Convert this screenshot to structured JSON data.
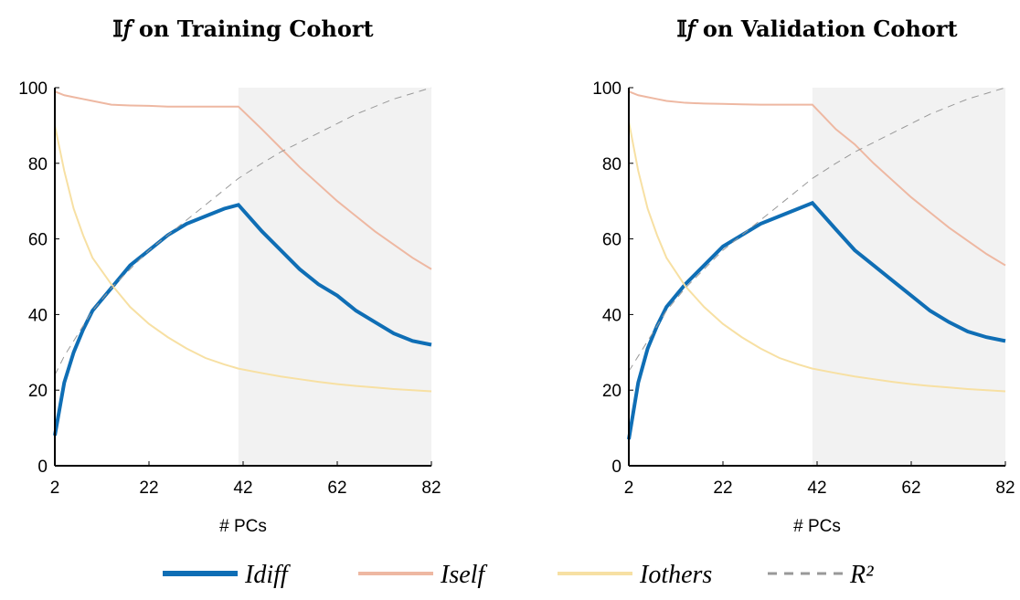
{
  "chart_data": [
    {
      "type": "line",
      "title": "𝕀𝑓 on Training Cohort",
      "x_label": "# PCs",
      "x": [
        2,
        4,
        6,
        8,
        10,
        14,
        18,
        22,
        26,
        30,
        34,
        38,
        41,
        46,
        50,
        54,
        58,
        62,
        66,
        70,
        74,
        78,
        82
      ],
      "xlim": [
        2,
        82
      ],
      "xticks": [
        2,
        22,
        42,
        62,
        82
      ],
      "ylim": [
        0,
        100
      ],
      "yticks": [
        0,
        20,
        40,
        60,
        80,
        100
      ],
      "highlight": [
        41,
        82
      ],
      "series": [
        {
          "name": "Idiff",
          "color": "#0f6eb5",
          "width": 4,
          "dash": false,
          "values": [
            8,
            22,
            30,
            36,
            41,
            47,
            53,
            57,
            61,
            64,
            66,
            68,
            69,
            62,
            57,
            52,
            48,
            45,
            41,
            38,
            35,
            33,
            32
          ]
        },
        {
          "name": "Iself",
          "color": "#eeb8a2",
          "width": 2,
          "dash": false,
          "values": [
            99,
            98,
            97.5,
            97,
            96.5,
            95.5,
            95.3,
            95.2,
            95,
            95,
            95,
            95,
            95,
            89,
            84,
            79,
            74.5,
            70,
            66,
            62,
            58.5,
            55,
            52
          ]
        },
        {
          "name": "Iothers",
          "color": "#f7e0a3",
          "width": 2,
          "dash": false,
          "values": [
            90,
            78,
            68,
            61,
            55,
            48,
            42,
            37.5,
            34,
            31,
            28.5,
            26.8,
            25.7,
            24.5,
            23.6,
            22.9,
            22.2,
            21.6,
            21.1,
            20.7,
            20.3,
            20,
            19.7
          ]
        },
        {
          "name": "R²",
          "color": "#999999",
          "width": 1,
          "dash": true,
          "values": [
            24,
            29,
            33,
            37,
            41,
            47,
            52,
            57,
            61,
            65,
            69,
            73,
            76,
            80,
            83,
            85.5,
            88,
            90.5,
            93,
            95,
            97,
            98.5,
            100
          ]
        }
      ]
    },
    {
      "type": "line",
      "title": "𝕀𝑓 on Validation Cohort",
      "x_label": "# PCs",
      "x": [
        2,
        4,
        6,
        8,
        10,
        14,
        18,
        22,
        26,
        30,
        34,
        38,
        41,
        46,
        50,
        54,
        58,
        62,
        66,
        70,
        74,
        78,
        82
      ],
      "xlim": [
        2,
        82
      ],
      "xticks": [
        2,
        22,
        42,
        62,
        82
      ],
      "ylim": [
        0,
        100
      ],
      "yticks": [
        0,
        20,
        40,
        60,
        80,
        100
      ],
      "highlight": [
        41,
        82
      ],
      "series": [
        {
          "color": "#0f6eb5",
          "width": 4,
          "dash": false,
          "values": [
            7,
            22,
            31,
            37,
            42,
            48,
            53,
            58,
            61,
            64,
            66,
            68,
            69.5,
            62.5,
            57,
            53,
            49,
            45,
            41,
            38,
            35.5,
            34,
            33
          ]
        },
        {
          "color": "#eeb8a2",
          "width": 2,
          "dash": false,
          "values": [
            99,
            98,
            97.5,
            97,
            96.5,
            96,
            95.8,
            95.7,
            95.6,
            95.5,
            95.5,
            95.5,
            95.5,
            89,
            85,
            80,
            75.5,
            71,
            67,
            63,
            59.5,
            56,
            53
          ]
        },
        {
          "color": "#f7e0a3",
          "width": 2,
          "dash": false,
          "values": [
            91,
            78,
            68,
            61,
            55,
            47.5,
            42,
            37.5,
            34,
            31,
            28.5,
            26.8,
            25.7,
            24.5,
            23.6,
            22.9,
            22.2,
            21.6,
            21.1,
            20.7,
            20.3,
            20,
            19.7
          ]
        },
        {
          "color": "#999999",
          "width": 1,
          "dash": true,
          "values": [
            25,
            29,
            33,
            37,
            41,
            47,
            52,
            57,
            61,
            65,
            69,
            73,
            76,
            80,
            83,
            85.5,
            88,
            90.5,
            93,
            95,
            97,
            98.5,
            100
          ]
        }
      ]
    }
  ]
}
